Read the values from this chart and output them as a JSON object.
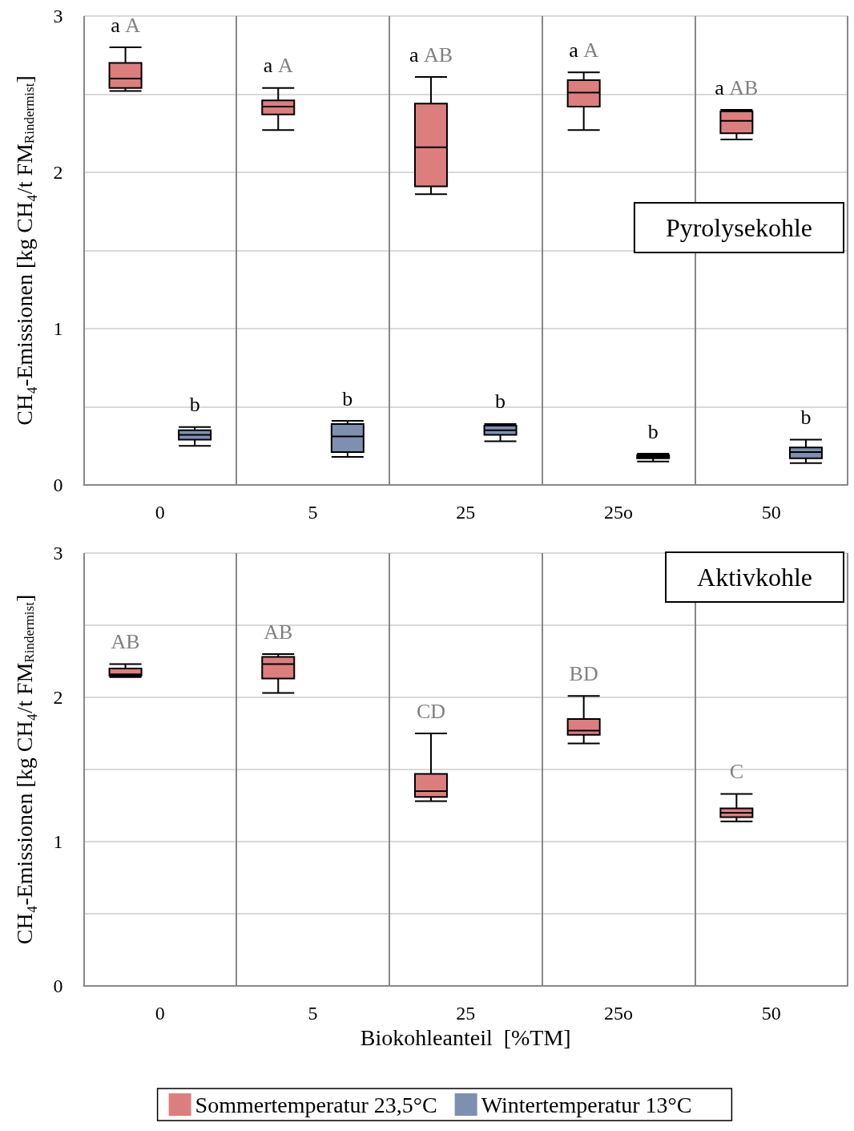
{
  "chart_data": [
    {
      "type": "box",
      "categories": [
        "0",
        "5",
        "25",
        "25o",
        "50"
      ],
      "ylabel": "CH₄-Emissionen [kg CH₄/t FM$_{Rindermist}$]",
      "ylim": [
        0,
        3
      ],
      "yticks": [
        0,
        {
          "value": 0.5,
          "label": null
        },
        1,
        {
          "value": 1.5,
          "label": null
        },
        2,
        {
          "value": 2.5,
          "label": null
        },
        3
      ],
      "grid": true,
      "series": [
        {
          "color": "#dd7e7e",
          "boxes": [
            {
              "low": 2.52,
              "q1": 2.54,
              "median": 2.6,
              "q3": 2.7,
              "high": 2.8
            },
            {
              "low": 2.27,
              "q1": 2.37,
              "median": 2.42,
              "q3": 2.46,
              "high": 2.54
            },
            {
              "low": 1.86,
              "q1": 1.91,
              "median": 2.16,
              "q3": 2.44,
              "high": 2.61
            },
            {
              "low": 2.27,
              "q1": 2.42,
              "median": 2.51,
              "q3": 2.59,
              "high": 2.64
            },
            {
              "low": 2.21,
              "q1": 2.25,
              "median": 2.33,
              "q3": 2.39,
              "high": 2.4
            }
          ]
        },
        {
          "color": "#7f8fb0",
          "boxes": [
            {
              "low": 0.25,
              "q1": 0.29,
              "median": 0.32,
              "q3": 0.35,
              "high": 0.37
            },
            {
              "low": 0.18,
              "q1": 0.21,
              "median": 0.31,
              "q3": 0.39,
              "high": 0.41
            },
            {
              "low": 0.28,
              "q1": 0.32,
              "median": 0.35,
              "q3": 0.38,
              "high": 0.39
            },
            {
              "low": 0.15,
              "q1": 0.17,
              "median": 0.18,
              "q3": 0.19,
              "high": 0.2
            },
            {
              "low": 0.14,
              "q1": 0.17,
              "median": 0.21,
              "q3": 0.24,
              "high": 0.29
            }
          ]
        }
      ],
      "annotations": [
        "a A",
        "a A",
        "a AB",
        "a A",
        "a AB",
        "b",
        "b",
        "b",
        "b",
        "b",
        "Pyrolysekohle"
      ]
    },
    {
      "type": "box",
      "categories": [
        "0",
        "5",
        "25",
        "25o",
        "50"
      ],
      "xlabel": "Biokohleanteil  [%TM]",
      "ylabel": "CH₄-Emissionen [kg CH₄/t FM$_{Rindermist}$]",
      "ylim": [
        0,
        3
      ],
      "yticks": [
        0,
        {
          "value": 0.5,
          "label": null
        },
        1,
        {
          "value": 1.5,
          "label": null
        },
        2,
        {
          "value": 2.5,
          "label": null
        },
        3
      ],
      "grid": true,
      "legend": "bottom",
      "series": [
        {
          "name": "Sommertemperatur 23,5°C",
          "color": "#dd7e7e",
          "boxes": [
            {
              "low": 2.14,
              "q1": 2.15,
              "median": 2.16,
              "q3": 2.2,
              "high": 2.23
            },
            {
              "low": 2.03,
              "q1": 2.13,
              "median": 2.23,
              "q3": 2.28,
              "high": 2.3
            },
            {
              "low": 1.28,
              "q1": 1.31,
              "median": 1.35,
              "q3": 1.47,
              "high": 1.75
            },
            {
              "low": 1.68,
              "q1": 1.74,
              "median": 1.77,
              "q3": 1.85,
              "high": 2.01
            },
            {
              "low": 1.14,
              "q1": 1.17,
              "median": 1.2,
              "q3": 1.23,
              "high": 1.33
            }
          ]
        },
        {
          "name": "Wintertemperatur 13°C",
          "color": "#7f8fb0",
          "boxes": [
            null,
            null,
            null,
            null,
            null
          ]
        }
      ],
      "annotations": [
        "AB",
        "AB",
        "CD",
        "BD",
        "C",
        "Aktivkohle"
      ]
    }
  ]
}
